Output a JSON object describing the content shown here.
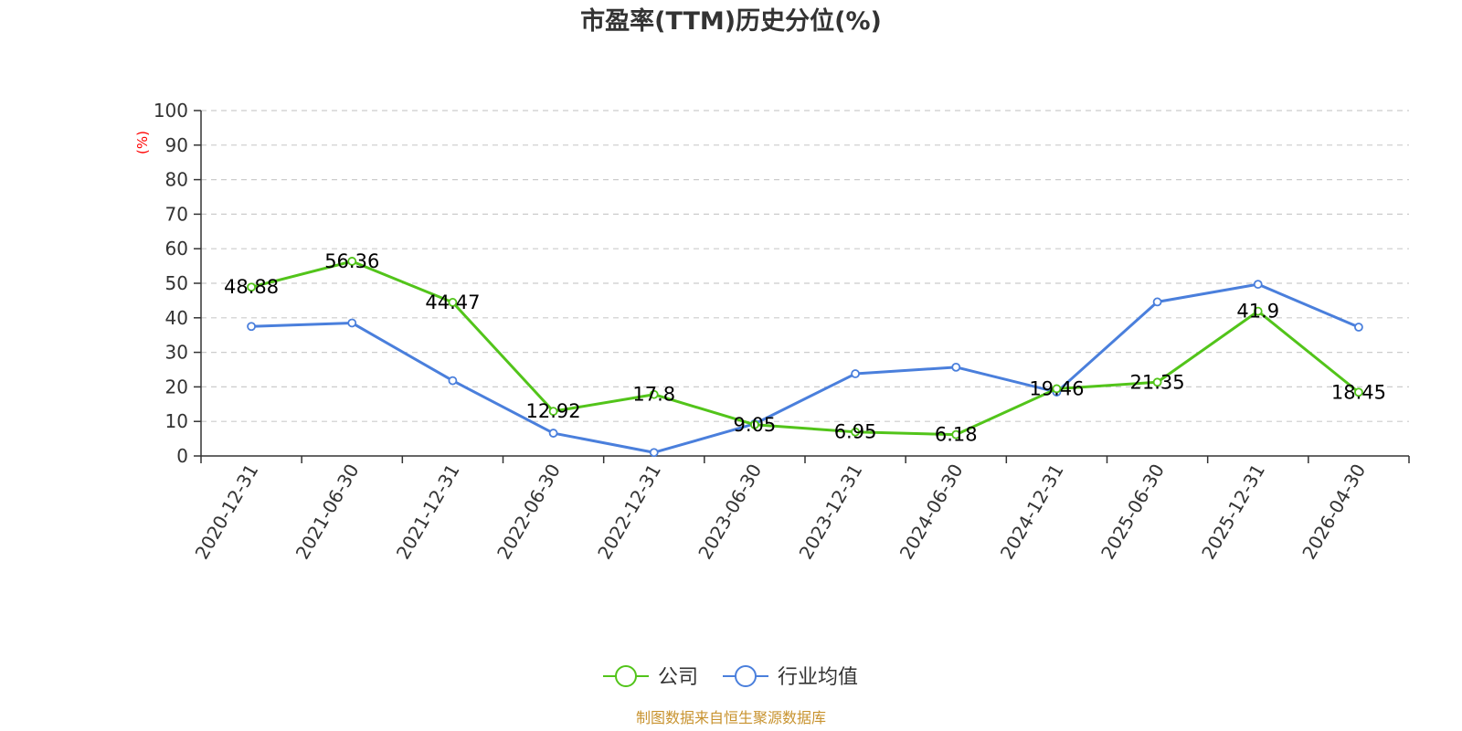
{
  "chart_data": {
    "type": "line",
    "title": "市盈率(TTM)历史分位(%)",
    "ylabel": "(%)",
    "ylim": [
      0,
      100
    ],
    "yticks": [
      0,
      10,
      20,
      30,
      40,
      50,
      60,
      70,
      80,
      90,
      100
    ],
    "grid": true,
    "legend_position": "bottom",
    "categories": [
      "2020-12-31",
      "2021-06-30",
      "2021-12-31",
      "2022-06-30",
      "2022-12-31",
      "2023-06-30",
      "2023-12-31",
      "2024-06-30",
      "2024-12-31",
      "2025-06-30",
      "2025-12-31",
      "2026-04-30"
    ],
    "series": [
      {
        "name": "公司",
        "color": "#52c41a",
        "values": [
          48.88,
          56.36,
          44.47,
          12.92,
          17.8,
          9.05,
          6.95,
          6.18,
          19.46,
          21.35,
          41.9,
          18.45
        ],
        "labels": [
          "48.88",
          "56.36",
          "44.47",
          "12.92",
          "17.8",
          "9.05",
          "6.95",
          "6.18",
          "19.46",
          "21.35",
          "41.9",
          "18.45"
        ]
      },
      {
        "name": "行业均值",
        "color": "#4a7fdc",
        "values": [
          37.5,
          38.5,
          21.8,
          6.6,
          1.0,
          9.3,
          23.8,
          25.7,
          18.5,
          44.6,
          49.7,
          37.3
        ]
      }
    ],
    "source": "制图数据来自恒生聚源数据库"
  }
}
